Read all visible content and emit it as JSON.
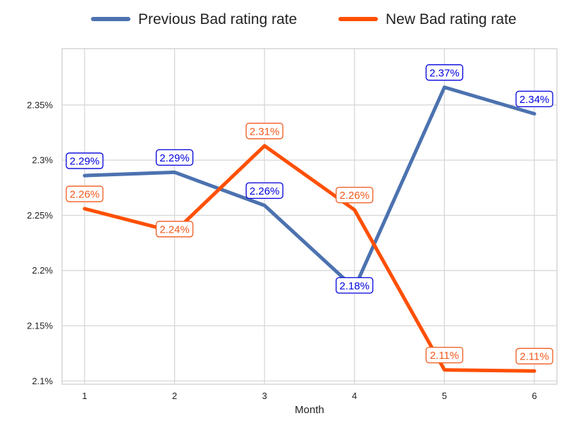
{
  "chart_data": {
    "type": "line",
    "title": "",
    "xlabel": "Month",
    "ylabel": "",
    "x": [
      1,
      2,
      3,
      4,
      5,
      6
    ],
    "xticks": [
      "1",
      "2",
      "3",
      "4",
      "5",
      "6"
    ],
    "ylim": [
      2.097,
      2.401
    ],
    "yticks": [
      2.1,
      2.15,
      2.2,
      2.25,
      2.3,
      2.35
    ],
    "ytick_labels": [
      "2.1%",
      "2.15%",
      "2.2%",
      "2.25%",
      "2.3%",
      "2.35%"
    ],
    "grid": true,
    "legend_position": "top-center",
    "series": [
      {
        "name": "Previous Bad rating rate",
        "color": "#4c72b0",
        "label_color": "#0000dd",
        "values": [
          2.286,
          2.289,
          2.259,
          2.184,
          2.366,
          2.342
        ],
        "labels": [
          "2.29%",
          "2.29%",
          "2.26%",
          "2.18%",
          "2.37%",
          "2.34%"
        ],
        "label_side": [
          "above",
          "above",
          "above",
          "on",
          "above",
          "above"
        ]
      },
      {
        "name": "New Bad rating rate",
        "color": "#ff4f00",
        "label_color": "#f05a1e",
        "values": [
          2.256,
          2.235,
          2.313,
          2.255,
          2.11,
          2.109
        ],
        "labels": [
          "2.26%",
          "2.24%",
          "2.31%",
          "2.26%",
          "2.11%",
          "2.11%"
        ],
        "label_side": [
          "above",
          "on",
          "above",
          "above",
          "above",
          "above"
        ]
      }
    ]
  }
}
